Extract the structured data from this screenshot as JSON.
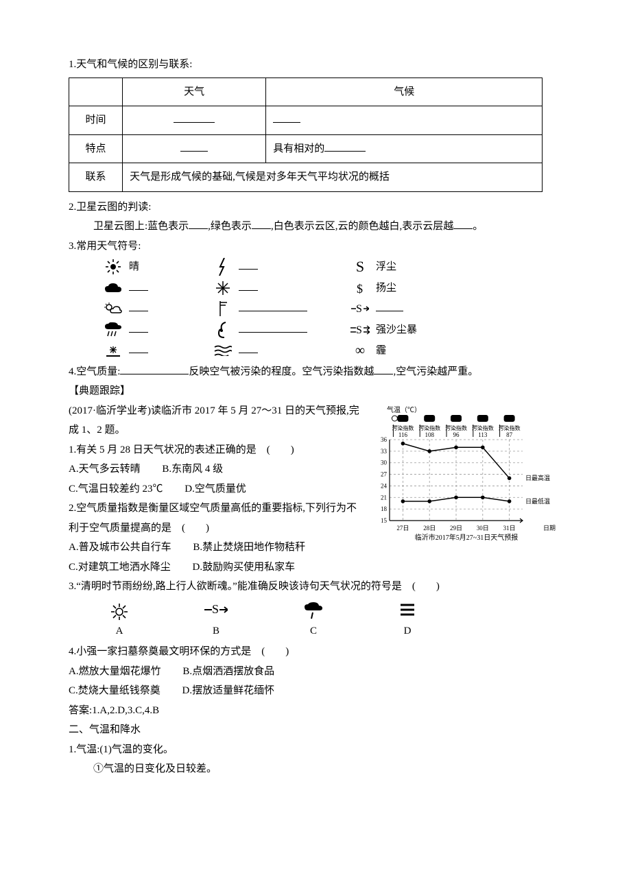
{
  "section1": {
    "title": "1.天气和气候的区别与联系:",
    "table": {
      "headers": [
        "",
        "天气",
        "气候"
      ],
      "rows": [
        {
          "label": "时间",
          "c1_blank": true,
          "c2_blank": true
        },
        {
          "label": "特点",
          "c1_blank": true,
          "c2_text_before": "具有相对的",
          "c2_blank_after": true
        },
        {
          "label": "联系",
          "merged_text": "天气是形成气候的基础,气候是对多年天气平均状况的概括"
        }
      ]
    }
  },
  "section2": {
    "title": "2.卫星云图的判读:",
    "body_before_blank1": "卫星云图上:蓝色表示",
    "mid1": ",绿色表示",
    "mid2": ",白色表示云区,云的颜色越白,表示云层越",
    "end": "。"
  },
  "section3": {
    "title": "3.常用天气符号:",
    "rows": [
      {
        "a_label": "晴",
        "b_blank": true,
        "c_label": "浮尘"
      },
      {
        "a_blank": true,
        "b_blank": true,
        "c_label": "扬尘"
      },
      {
        "a_blank": true,
        "b_blank_long": true,
        "c_blank": true
      },
      {
        "a_blank": true,
        "b_blank_long": true,
        "c_label": "强沙尘暴"
      },
      {
        "a_blank": true,
        "b_blank": true,
        "c_label": "霾"
      }
    ]
  },
  "section4": {
    "title_before": "4.空气质量:",
    "mid": "反映空气被污染的程度。空气污染指数越",
    "end": ",空气污染越严重。"
  },
  "exercises_header": "【典题跟踪】",
  "forecast_stem": "(2017·临沂学业考)读临沂市 2017 年 5 月 27～31 日的天气预报,完成 1、2 题。",
  "chart": {
    "title_y": "气温（℃）",
    "caption": "临沂市2017年5月27~31日天气预报",
    "days": [
      "27日",
      "28日",
      "29日",
      "30日",
      "31日"
    ],
    "idx_label": "污染指数",
    "idx_values": [
      116,
      108,
      96,
      113,
      87
    ],
    "y_ticks": [
      36,
      33,
      30,
      27,
      24,
      21,
      18,
      15
    ],
    "series_high_label": "日最高温",
    "series_low_label": "日最低温",
    "high": [
      35,
      33,
      34,
      34,
      26
    ],
    "low": [
      20,
      20,
      21,
      21,
      20
    ],
    "colors": {
      "grid": "#999",
      "axis": "#000",
      "high": "#000",
      "low": "#000",
      "text": "#000",
      "bg": "#fff"
    }
  },
  "q1": {
    "stem": "1.有关 5 月 28 日天气状况的表述正确的是　(　　)",
    "A": "A.天气多云转晴",
    "B": "B.东南风 4 级",
    "C": "C.气温日较差约 23℃",
    "D": "D.空气质量优"
  },
  "q2": {
    "stem": "2.空气质量指数是衡量区域空气质量高低的重要指标,下列行为不利于空气质量提高的是　(　　)",
    "A": "A.普及城市公共自行车",
    "B": "B.禁止焚烧田地作物秸秆",
    "C": "C.对建筑工地洒水降尘",
    "D": "D.鼓励购买使用私家车"
  },
  "q3": {
    "stem": "3.“清明时节雨纷纷,路上行人欲断魂。”能准确反映该诗句天气状况的符号是　(　　)",
    "choices": [
      "A",
      "B",
      "C",
      "D"
    ]
  },
  "q4": {
    "stem": "4.小强一家扫墓祭奠最文明环保的方式是　(　　)",
    "A": "A.燃放大量烟花爆竹",
    "B": "B.点烟洒酒摆放食品",
    "C": "C.焚烧大量纸钱祭奠",
    "D": "D.摆放适量鲜花缅怀"
  },
  "answers": "答案:1.A,2.D,3.C,4.B",
  "section_b_title": "二、气温和降水",
  "section_b_1": "1.气温:(1)气温的变化。",
  "section_b_1_1": "①气温的日变化及日较差。"
}
